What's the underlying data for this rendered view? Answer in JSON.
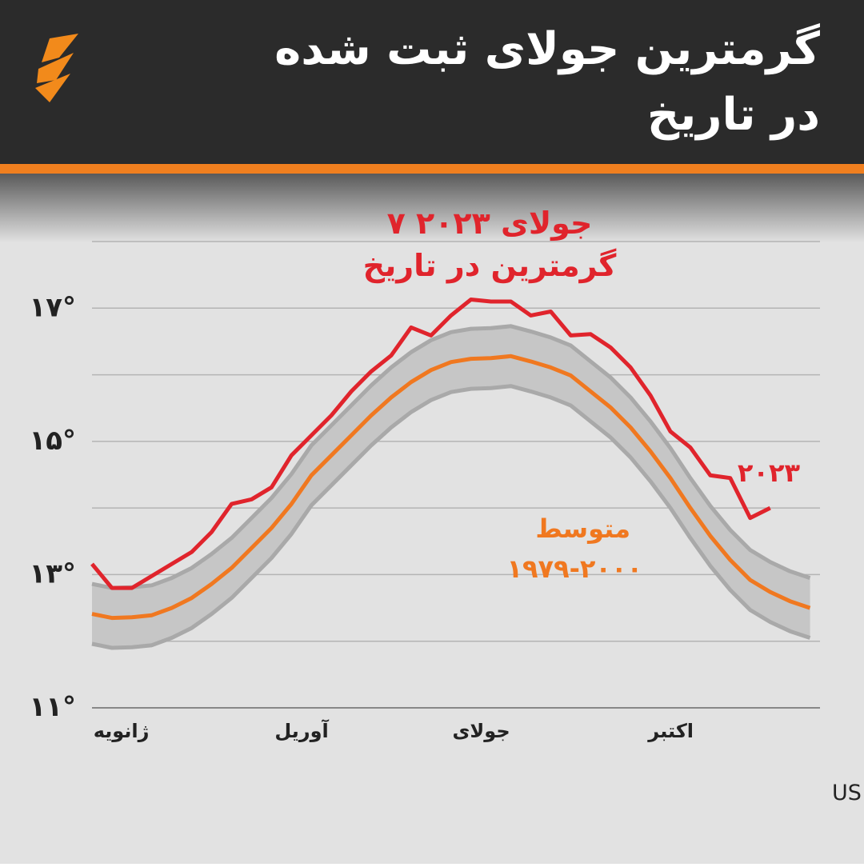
{
  "chart_data": {
    "type": "line",
    "title_lines": [
      "گرمترین جولای ثبت شده",
      "در تاریخ"
    ],
    "annotation_lines": [
      "۷ جولای ۲۰۲۳",
      "گرمترین در تاریخ"
    ],
    "source": "منبع: US National Centers for Environmental Prediction",
    "xlim": [
      0,
      365
    ],
    "xticks": [
      {
        "value": 15,
        "label": "ژانویه"
      },
      {
        "value": 105,
        "label": "آوریل"
      },
      {
        "value": 196,
        "label": "جولای"
      },
      {
        "value": 288,
        "label": "اکتبر"
      }
    ],
    "ylim": [
      11,
      18
    ],
    "yticks": [
      {
        "value": 11,
        "label": "۱۱°"
      },
      {
        "value": 12,
        "label": null
      },
      {
        "value": 13,
        "label": "۱۳°"
      },
      {
        "value": 14,
        "label": null
      },
      {
        "value": 15,
        "label": "۱۵°"
      },
      {
        "value": 16,
        "label": null
      },
      {
        "value": 17,
        "label": "۱۷°"
      },
      {
        "value": 18,
        "label": null
      }
    ],
    "grid": true,
    "x": [
      0,
      10,
      20,
      30,
      40,
      50,
      60,
      70,
      80,
      90,
      100,
      110,
      120,
      130,
      140,
      150,
      160,
      170,
      180,
      190,
      200,
      210,
      220,
      230,
      240,
      250,
      260,
      270,
      280,
      290,
      300,
      310,
      320,
      330,
      340,
      350,
      360
    ],
    "band": {
      "color": "#a9a9a9",
      "fill": "#c6c6c6",
      "upper": [
        12.86,
        12.8,
        12.81,
        12.84,
        12.95,
        13.1,
        13.31,
        13.55,
        13.85,
        14.15,
        14.51,
        14.94,
        15.24,
        15.54,
        15.84,
        16.11,
        16.34,
        16.52,
        16.64,
        16.69,
        16.7,
        16.73,
        16.65,
        16.56,
        16.44,
        16.2,
        15.96,
        15.66,
        15.3,
        14.9,
        14.45,
        14.03,
        13.67,
        13.37,
        13.19,
        13.05,
        12.95
      ],
      "lower": [
        11.96,
        11.9,
        11.91,
        11.94,
        12.05,
        12.2,
        12.41,
        12.65,
        12.95,
        13.25,
        13.61,
        14.04,
        14.34,
        14.64,
        14.94,
        15.21,
        15.44,
        15.62,
        15.74,
        15.79,
        15.8,
        15.83,
        15.75,
        15.66,
        15.54,
        15.3,
        15.06,
        14.76,
        14.4,
        14.0,
        13.55,
        13.13,
        12.77,
        12.47,
        12.29,
        12.15,
        12.05
      ]
    },
    "series": [
      {
        "name": "متوسط",
        "sublabel": "۱۹۷۹-۲۰۰۰",
        "color": "#f07820",
        "values": [
          12.41,
          12.35,
          12.36,
          12.39,
          12.5,
          12.65,
          12.86,
          13.1,
          13.4,
          13.7,
          14.06,
          14.49,
          14.79,
          15.09,
          15.39,
          15.66,
          15.89,
          16.07,
          16.19,
          16.24,
          16.25,
          16.28,
          16.2,
          16.11,
          15.99,
          15.75,
          15.51,
          15.21,
          14.85,
          14.45,
          14.0,
          13.58,
          13.22,
          12.92,
          12.74,
          12.6,
          12.5
        ]
      },
      {
        "name": "۲۰۲۳",
        "color": "#e0242c",
        "values": [
          13.16,
          12.8,
          12.8,
          12.98,
          13.16,
          13.34,
          13.64,
          14.06,
          14.13,
          14.31,
          14.79,
          15.09,
          15.39,
          15.75,
          16.05,
          16.29,
          16.71,
          16.59,
          16.89,
          17.13,
          17.1,
          17.1,
          16.89,
          16.95,
          16.59,
          16.61,
          16.41,
          16.11,
          15.69,
          15.15,
          14.91,
          14.49,
          14.45,
          13.85,
          14.0,
          null,
          null
        ]
      }
    ]
  }
}
